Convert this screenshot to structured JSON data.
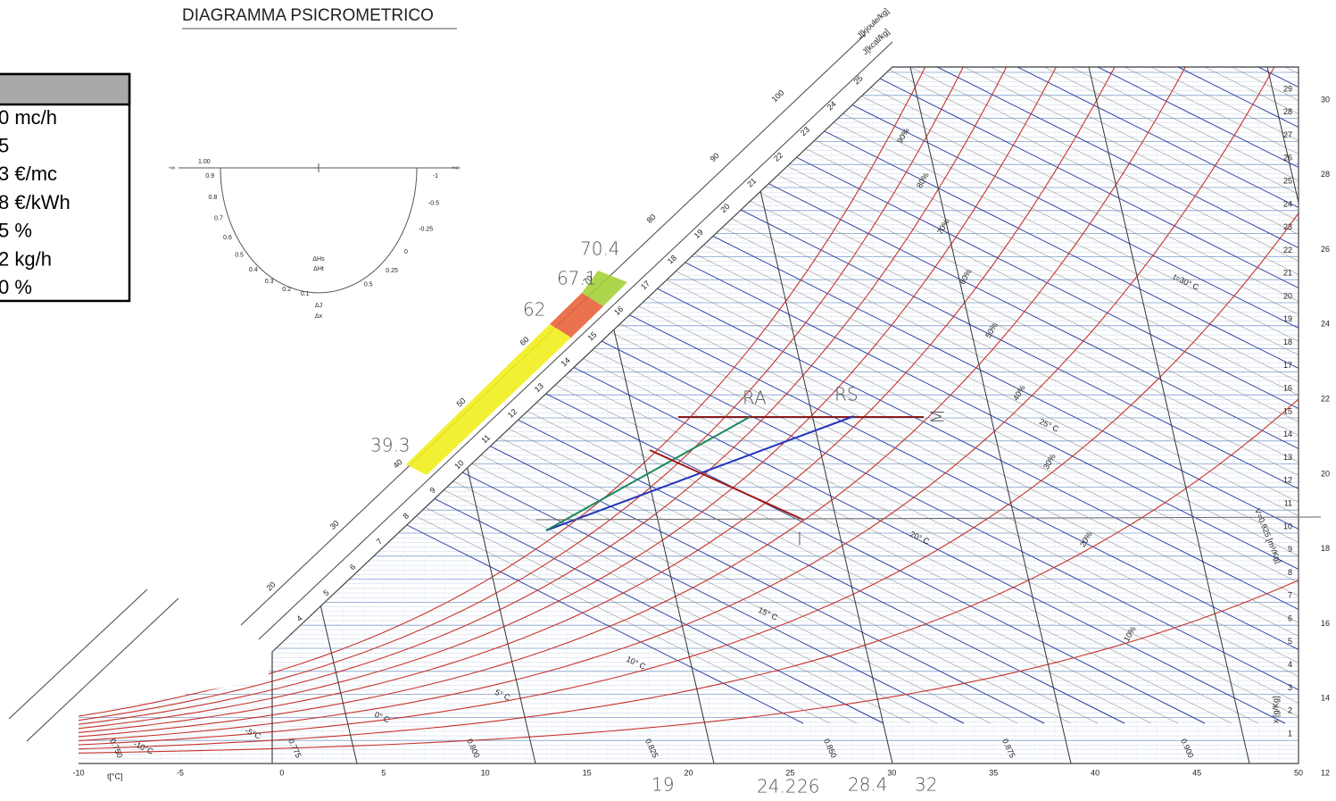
{
  "title": "DIAGRAMMA PSICROMETRICO",
  "side_panel": {
    "rows": [
      "0  mc/h",
      "5",
      "3  €/mc",
      "8  €/kWh",
      "5  %",
      "2  kg/h",
      "0  %"
    ]
  },
  "protractor": {
    "top_left": "-∞",
    "top_value": "1.00",
    "top_right": "+∞",
    "ratio_top": "ΔHs",
    "ratio_bottom": "ΔHt",
    "ratio2_top": "ΔJ",
    "ratio2_bottom": "Δx",
    "left_ticks": [
      "0.9",
      "0.8",
      "0.7",
      "0.6",
      "0.5",
      "0.4",
      "0.3",
      "0.2",
      "0.1"
    ],
    "right_ticks": [
      "-1",
      "-0.5",
      "-0.25",
      "0",
      "0.25",
      "0.5"
    ]
  },
  "enthalpy_axis": {
    "kcal_label": "J[kcal/kg]",
    "kjoule_label": "J[kjoule/kg]",
    "kcal_ticks": [
      4,
      5,
      6,
      7,
      8,
      9,
      10,
      11,
      12,
      13,
      14,
      15,
      16,
      17,
      18,
      19,
      20,
      21,
      22,
      23,
      24,
      25
    ],
    "kjoule_ticks": [
      20,
      30,
      40,
      50,
      60,
      70,
      80,
      90,
      100
    ]
  },
  "temperature_axis": {
    "label": "t[°C]",
    "ticks": [
      -10,
      -5,
      0,
      5,
      10,
      15,
      20,
      25,
      30,
      35,
      40,
      45,
      50
    ]
  },
  "humidity_axis": {
    "label": "x [g/Kg]",
    "ticks": [
      1,
      2,
      3,
      4,
      5,
      6,
      7,
      8,
      9,
      10,
      11,
      12,
      13,
      14,
      15,
      16,
      17,
      18,
      19,
      20,
      21,
      22,
      23,
      24,
      25,
      26,
      27,
      28,
      29
    ]
  },
  "outer_scale": {
    "ticks": [
      12,
      14,
      16,
      18,
      20,
      22,
      24,
      26,
      28,
      30
    ]
  },
  "rh_labels": [
    "90%",
    "80%",
    "70%",
    "60%",
    "50%",
    "40%",
    "30%",
    "20%",
    "10%"
  ],
  "isotherm_labels": [
    "t=30° C",
    "25° C",
    "20° C",
    "15° C",
    "10° C",
    "5° C",
    "0° C",
    "-5°C",
    "-10°C"
  ],
  "volume_labels": [
    "0.750",
    "0.775",
    "0.800",
    "0.825",
    "0.850",
    "0.875",
    "0.900"
  ],
  "volume_title": "V=0.925 [m³/Kg]",
  "handwritten": {
    "scale_marks": [
      "70.4",
      "67.1",
      "62",
      "39.3"
    ],
    "points": [
      "RA",
      "RS",
      "M",
      "I"
    ],
    "bottom": [
      "19",
      "24.2",
      "26",
      "28.4",
      "32"
    ]
  }
}
